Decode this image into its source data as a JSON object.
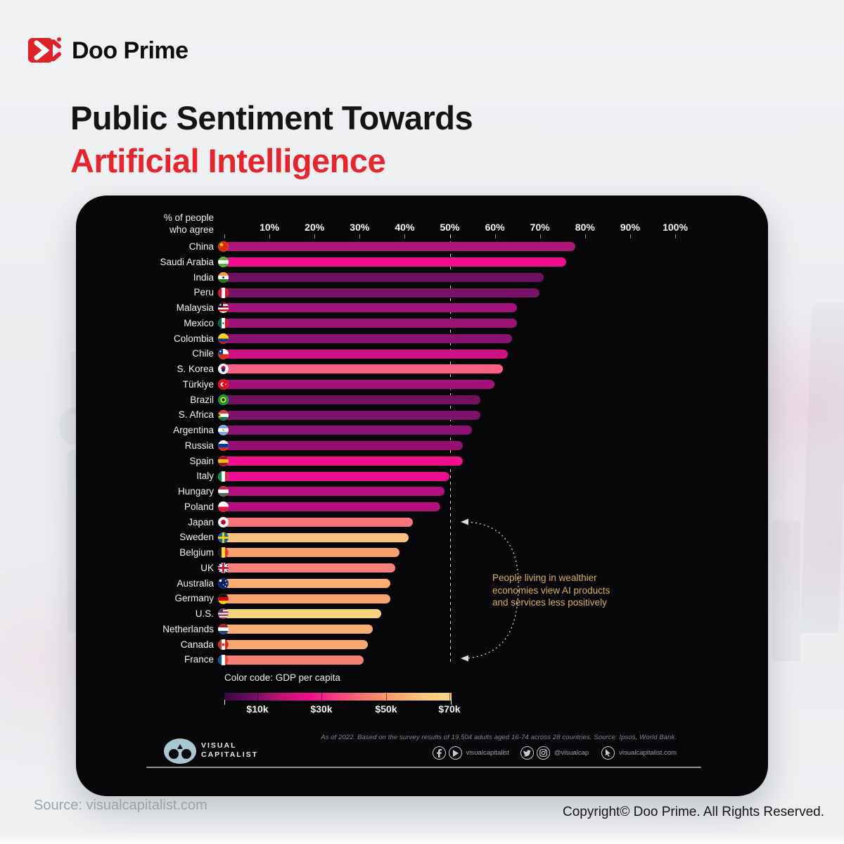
{
  "brand": {
    "name": "Doo Prime"
  },
  "title": {
    "line1": "Public Sentiment Towards",
    "line2": "Artificial Intelligence"
  },
  "colors": {
    "accent_red": "#e8232c",
    "panel_bg": "#070709",
    "annotation_gold": "#d9b05e",
    "bright_pink": "#ee0d90"
  },
  "chart_data": {
    "type": "bar",
    "title": "Public Sentiment Towards Artificial Intelligence",
    "axis_label_line1": "% of people",
    "axis_label_line2": "who agree",
    "x_ticks": [
      "10%",
      "20%",
      "30%",
      "40%",
      "50%",
      "60%",
      "70%",
      "80%",
      "90%",
      "100%"
    ],
    "xlim": [
      0,
      100
    ],
    "unit": "%",
    "reference_line_value": 50,
    "color_meaning": "GDP per capita",
    "countries": [
      {
        "name": "China",
        "value": 78,
        "color": "#b01578",
        "flag": {
          "s": [
            "#de2910"
          ],
          "dots": [
            [
              5,
              5,
              2.2,
              "#ffde00"
            ]
          ]
        }
      },
      {
        "name": "Saudi Arabia",
        "value": 76,
        "color": "#f00e8d",
        "flag": {
          "s": [
            "#5bb234",
            "#f4f7ef",
            "#5bb234"
          ]
        }
      },
      {
        "name": "India",
        "value": 71,
        "color": "#6e1161",
        "flag": {
          "s": [
            "#ff9933",
            "#f7f7f7",
            "#138808"
          ],
          "dots": [
            [
              7.5,
              7.5,
              1.4,
              "#000080"
            ]
          ]
        }
      },
      {
        "name": "Peru",
        "value": 70,
        "color": "#7a1267",
        "flag": {
          "d": "v",
          "s": [
            "#d91023",
            "#ffffff",
            "#d91023"
          ]
        }
      },
      {
        "name": "Malaysia",
        "value": 65,
        "color": "#a31378",
        "flag": {
          "s": [
            "#cc0001",
            "#ffffff",
            "#cc0001",
            "#ffffff",
            "#cc0001",
            "#ffffff"
          ],
          "cn": [
            7,
            7,
            "#010066"
          ],
          "dots": [
            [
              3.5,
              3.5,
              1.3,
              "#ffcc00"
            ]
          ]
        }
      },
      {
        "name": "Mexico",
        "value": 65,
        "color": "#9b1474",
        "flag": {
          "d": "v",
          "s": [
            "#006847",
            "#ffffff",
            "#ce1126"
          ],
          "dots": [
            [
              7.5,
              7.5,
              1.4,
              "#9c6b30"
            ]
          ]
        }
      },
      {
        "name": "Colombia",
        "value": 64,
        "color": "#8a1370",
        "flag": {
          "s": [
            "#fcd116",
            "#fcd116",
            "#003893",
            "#ce1126"
          ]
        }
      },
      {
        "name": "Chile",
        "value": 63,
        "color": "#ce1181",
        "flag": {
          "s": [
            "#ffffff",
            "#d52b1e"
          ],
          "cn": [
            7,
            7.5,
            "#0039a6"
          ],
          "dots": [
            [
              3.5,
              3.7,
              1.1,
              "#ffffff"
            ]
          ]
        }
      },
      {
        "name": "S. Korea",
        "value": 62,
        "color": "#fb5f85",
        "flag": {
          "s": [
            "#f7f7f7"
          ],
          "dots": [
            [
              7.5,
              6.4,
              3.1,
              "#c60c30"
            ],
            [
              7.5,
              9.2,
              2.5,
              "#003478"
            ]
          ]
        }
      },
      {
        "name": "Türkiye",
        "value": 60,
        "color": "#a31178",
        "flag": {
          "s": [
            "#e30a17"
          ],
          "dots": [
            [
              6.5,
              7.5,
              3,
              "#ffffff"
            ],
            [
              8.2,
              7.5,
              2.3,
              "#e30a17"
            ],
            [
              11,
              7.5,
              1,
              "#ffffff"
            ]
          ]
        }
      },
      {
        "name": "Brazil",
        "value": 57,
        "color": "#721362",
        "flag": {
          "s": [
            "#009c3b"
          ],
          "dots": [
            [
              7.5,
              7.5,
              4,
              "#ffdf00"
            ],
            [
              7.5,
              7.5,
              2.2,
              "#002776"
            ]
          ]
        }
      },
      {
        "name": "S. Africa",
        "value": 57,
        "color": "#7d1269",
        "flag": {
          "s": [
            "#de3831",
            "#ffffff",
            "#007a4d"
          ],
          "dots": [
            [
              1,
              7.5,
              3.4,
              "#fcd116"
            ],
            [
              0.2,
              7.5,
              2.2,
              "#141414"
            ]
          ]
        }
      },
      {
        "name": "Argentina",
        "value": 55,
        "color": "#8e1272",
        "flag": {
          "s": [
            "#74acdf",
            "#ffffff",
            "#74acdf"
          ],
          "dots": [
            [
              7.5,
              7.5,
              1.5,
              "#f6b40e"
            ]
          ]
        }
      },
      {
        "name": "Russia",
        "value": 53,
        "color": "#941173",
        "flag": {
          "s": [
            "#ffffff",
            "#0039a6",
            "#d52b1e"
          ]
        }
      },
      {
        "name": "Spain",
        "value": 53,
        "color": "#f20e8c",
        "flag": {
          "s": [
            "#aa151b",
            "#f1bf00",
            "#aa151b"
          ]
        }
      },
      {
        "name": "Italy",
        "value": 50,
        "color": "#ee0d90",
        "flag": {
          "d": "v",
          "s": [
            "#009246",
            "#ffffff",
            "#ce2b37"
          ]
        }
      },
      {
        "name": "Hungary",
        "value": 49,
        "color": "#b60f7e",
        "flag": {
          "s": [
            "#ce2939",
            "#ffffff",
            "#477050"
          ]
        }
      },
      {
        "name": "Poland",
        "value": 48,
        "color": "#b30e7d",
        "flag": {
          "s": [
            "#f5f5f5",
            "#dc143c"
          ]
        }
      },
      {
        "name": "Japan",
        "value": 42,
        "color": "#f7747c",
        "flag": {
          "s": [
            "#f4f4f4"
          ],
          "dots": [
            [
              7.5,
              7.5,
              3.4,
              "#bc002d"
            ]
          ]
        }
      },
      {
        "name": "Sweden",
        "value": 41,
        "color": "#f9c17d",
        "flag": {
          "s": [
            "#006aa7"
          ],
          "cross": [
            [
              "#fecc00",
              3
            ]
          ]
        }
      },
      {
        "name": "Belgium",
        "value": 39,
        "color": "#f9a06c",
        "flag": {
          "d": "v",
          "s": [
            "#141414",
            "#fdda24",
            "#ef3340"
          ]
        }
      },
      {
        "name": "UK",
        "value": 38,
        "color": "#f88077",
        "flag": {
          "s": [
            "#012169"
          ],
          "salt": "#ffffff",
          "cross": [
            [
              "#ffffff",
              5
            ],
            [
              "#c8102e",
              2.8
            ]
          ]
        }
      },
      {
        "name": "Australia",
        "value": 37,
        "color": "#f9ae70",
        "flag": {
          "s": [
            "#012169"
          ],
          "dots": [
            [
              3.5,
              3.5,
              1.8,
              "#ffffff"
            ],
            [
              10.8,
              3.8,
              0.9,
              "#ffffff"
            ],
            [
              12.3,
              7.8,
              0.9,
              "#ffffff"
            ],
            [
              10.3,
              11.8,
              0.9,
              "#ffffff"
            ],
            [
              7.6,
              9.6,
              0.7,
              "#ffffff"
            ]
          ]
        }
      },
      {
        "name": "Germany",
        "value": 37,
        "color": "#f9a26d",
        "flag": {
          "s": [
            "#141414",
            "#dd0000",
            "#ffce00"
          ]
        }
      },
      {
        "name": "U.S.",
        "value": 35,
        "color": "#f6d57f",
        "flag": {
          "s": [
            "#b22234",
            "#ffffff",
            "#b22234",
            "#ffffff",
            "#b22234",
            "#ffffff",
            "#b22234"
          ],
          "cn": [
            7,
            6.4,
            "#3c3b6e"
          ]
        }
      },
      {
        "name": "Netherlands",
        "value": 33,
        "color": "#f9ad71",
        "flag": {
          "s": [
            "#ae1c28",
            "#ffffff",
            "#21468b"
          ]
        }
      },
      {
        "name": "Canada",
        "value": 32,
        "color": "#f9a96e",
        "flag": {
          "d": "v",
          "s": [
            "#d52b1e",
            "#ffffff",
            "#d52b1e"
          ],
          "dots": [
            [
              7.5,
              7.5,
              2,
              "#d52b1e"
            ]
          ]
        }
      },
      {
        "name": "France",
        "value": 31,
        "color": "#f87e78",
        "flag": {
          "d": "v",
          "s": [
            "#0055a4",
            "#ffffff",
            "#ef4135"
          ]
        }
      }
    ],
    "annotation": {
      "line1": "People living in wealthier",
      "line2": "economies view AI products",
      "line3": "and services less positively"
    },
    "legend": {
      "title": "Color code: GDP per capita",
      "tick_labels": [
        "$10k",
        "$30k",
        "$50k",
        "$70k"
      ],
      "gradient_stops": [
        "#350840",
        "#6d1061",
        "#c01077",
        "#ee0d8a",
        "#f2427f",
        "#f57a72",
        "#f8a56f",
        "#fbc87c",
        "#fbd584"
      ]
    },
    "footnote": "As of 2022. Based on the survey results of 19,504 adults aged 16-74 across 28 countries. Source: Ipsos, World Bank."
  },
  "panel_footer": {
    "publisher_line1": "VISUAL",
    "publisher_line2": "CAPITALIST",
    "social_handle_web": "visualcapitalist",
    "social_handle_at": "@visualcap",
    "social_handle_url": "visualcapitalist.com"
  },
  "page_footer": {
    "source": "Source: visualcapitalist.com",
    "copyright": "Copyright© Doo Prime. All Rights Reserved."
  }
}
